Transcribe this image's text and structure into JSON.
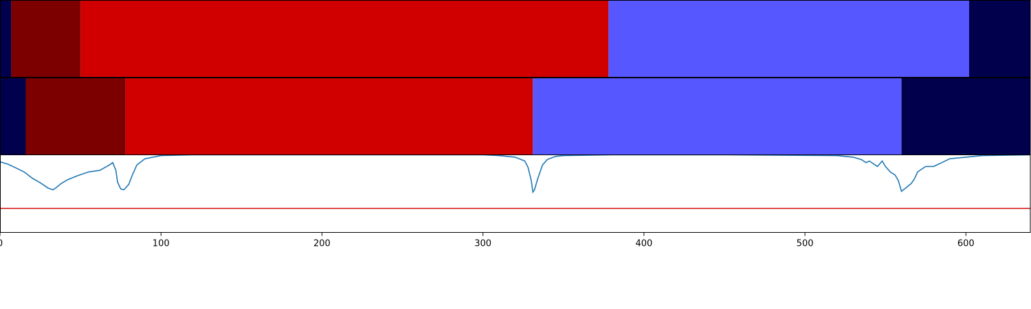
{
  "chart_data": [
    {
      "type": "bar",
      "orientation": "horizontal-segments",
      "segments": [
        {
          "start": 0,
          "end": 7,
          "color": "#00004c"
        },
        {
          "start": 7,
          "end": 50,
          "color": "#7c0000"
        },
        {
          "start": 50,
          "end": 378,
          "color": "#d10000"
        },
        {
          "start": 378,
          "end": 602,
          "color": "#5757ff"
        },
        {
          "start": 602,
          "end": 640,
          "color": "#00004c"
        }
      ]
    },
    {
      "type": "bar",
      "orientation": "horizontal-segments",
      "segments": [
        {
          "start": 0,
          "end": 16,
          "color": "#00004c"
        },
        {
          "start": 16,
          "end": 78,
          "color": "#7c0000"
        },
        {
          "start": 78,
          "end": 331,
          "color": "#d10000"
        },
        {
          "start": 331,
          "end": 560,
          "color": "#5757ff"
        },
        {
          "start": 560,
          "end": 640,
          "color": "#00004c"
        }
      ]
    },
    {
      "type": "line",
      "xlim": [
        0,
        640
      ],
      "ylim": [
        0,
        1
      ],
      "x_ticks": [
        0,
        100,
        200,
        300,
        400,
        500,
        600
      ],
      "series": [
        {
          "color": "#1f77b4",
          "x": [
            0,
            5,
            10,
            15,
            20,
            25,
            30,
            33,
            35,
            38,
            42,
            48,
            55,
            62,
            68,
            70,
            72,
            73,
            75,
            77,
            80,
            82,
            85,
            90,
            100,
            120,
            200,
            300,
            310,
            320,
            326,
            328,
            330,
            331,
            332,
            334,
            337,
            340,
            345,
            350,
            380,
            450,
            520,
            530,
            535,
            538,
            540,
            545,
            548,
            550,
            553,
            556,
            558,
            560,
            563,
            566,
            568,
            570,
            575,
            580,
            585,
            590,
            600,
            610,
            640
          ],
          "y": [
            0.91,
            0.88,
            0.83,
            0.78,
            0.7,
            0.64,
            0.57,
            0.55,
            0.58,
            0.63,
            0.68,
            0.73,
            0.78,
            0.8,
            0.87,
            0.9,
            0.8,
            0.65,
            0.56,
            0.55,
            0.62,
            0.73,
            0.87,
            0.95,
            0.99,
            1.0,
            1.0,
            1.0,
            0.99,
            0.97,
            0.92,
            0.84,
            0.67,
            0.52,
            0.55,
            0.69,
            0.87,
            0.94,
            0.98,
            0.99,
            1.0,
            1.0,
            0.99,
            0.97,
            0.94,
            0.9,
            0.92,
            0.85,
            0.92,
            0.85,
            0.78,
            0.74,
            0.67,
            0.53,
            0.58,
            0.63,
            0.69,
            0.78,
            0.85,
            0.85,
            0.9,
            0.95,
            0.97,
            0.99,
            1.0
          ]
        },
        {
          "color": "#d10000",
          "x": [
            0,
            640
          ],
          "y": [
            0.31,
            0.31
          ]
        }
      ]
    }
  ]
}
